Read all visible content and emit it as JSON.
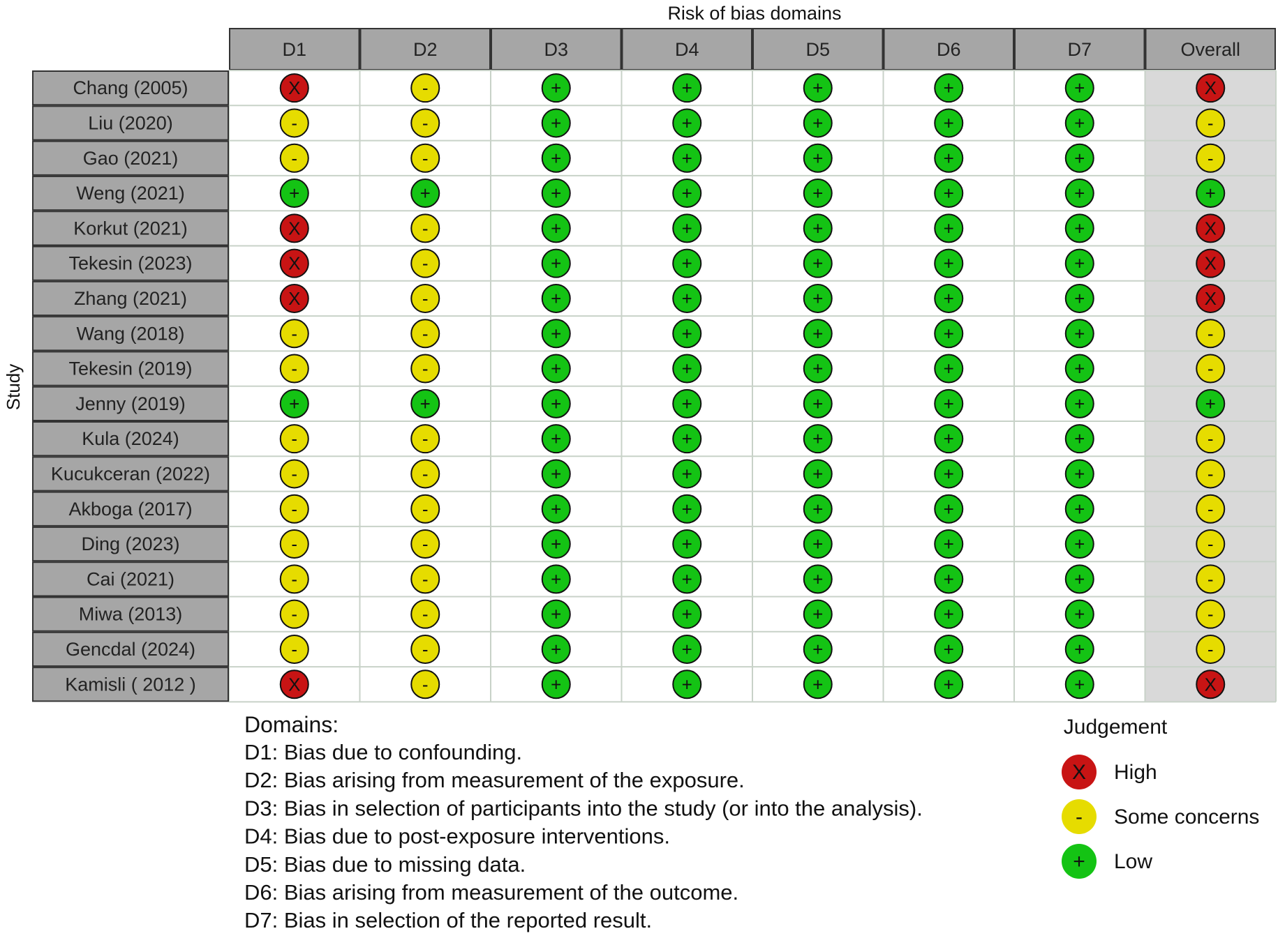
{
  "chart_data": {
    "type": "table",
    "title": "Risk of bias domains",
    "ylabel": "Study",
    "columns": [
      "D1",
      "D2",
      "D3",
      "D4",
      "D5",
      "D6",
      "D7",
      "Overall"
    ],
    "studies": [
      {
        "name": "Chang (2005)",
        "judgements": [
          "High",
          "Some concerns",
          "Low",
          "Low",
          "Low",
          "Low",
          "Low",
          "High"
        ]
      },
      {
        "name": "Liu (2020)",
        "judgements": [
          "Some concerns",
          "Some concerns",
          "Low",
          "Low",
          "Low",
          "Low",
          "Low",
          "Some concerns"
        ]
      },
      {
        "name": "Gao (2021)",
        "judgements": [
          "Some concerns",
          "Some concerns",
          "Low",
          "Low",
          "Low",
          "Low",
          "Low",
          "Some concerns"
        ]
      },
      {
        "name": "Weng (2021)",
        "judgements": [
          "Low",
          "Low",
          "Low",
          "Low",
          "Low",
          "Low",
          "Low",
          "Low"
        ]
      },
      {
        "name": "Korkut (2021)",
        "judgements": [
          "High",
          "Some concerns",
          "Low",
          "Low",
          "Low",
          "Low",
          "Low",
          "High"
        ]
      },
      {
        "name": "Tekesin (2023)",
        "judgements": [
          "High",
          "Some concerns",
          "Low",
          "Low",
          "Low",
          "Low",
          "Low",
          "High"
        ]
      },
      {
        "name": "Zhang (2021)",
        "judgements": [
          "High",
          "Some concerns",
          "Low",
          "Low",
          "Low",
          "Low",
          "Low",
          "High"
        ]
      },
      {
        "name": "Wang (2018)",
        "judgements": [
          "Some concerns",
          "Some concerns",
          "Low",
          "Low",
          "Low",
          "Low",
          "Low",
          "Some concerns"
        ]
      },
      {
        "name": "Tekesin (2019)",
        "judgements": [
          "Some concerns",
          "Some concerns",
          "Low",
          "Low",
          "Low",
          "Low",
          "Low",
          "Some concerns"
        ]
      },
      {
        "name": "Jenny (2019)",
        "judgements": [
          "Low",
          "Low",
          "Low",
          "Low",
          "Low",
          "Low",
          "Low",
          "Low"
        ]
      },
      {
        "name": "Kula (2024)",
        "judgements": [
          "Some concerns",
          "Some concerns",
          "Low",
          "Low",
          "Low",
          "Low",
          "Low",
          "Some concerns"
        ]
      },
      {
        "name": "Kucukceran (2022)",
        "judgements": [
          "Some concerns",
          "Some concerns",
          "Low",
          "Low",
          "Low",
          "Low",
          "Low",
          "Some concerns"
        ]
      },
      {
        "name": "Akboga (2017)",
        "judgements": [
          "Some concerns",
          "Some concerns",
          "Low",
          "Low",
          "Low",
          "Low",
          "Low",
          "Some concerns"
        ]
      },
      {
        "name": "Ding (2023)",
        "judgements": [
          "Some concerns",
          "Some concerns",
          "Low",
          "Low",
          "Low",
          "Low",
          "Low",
          "Some concerns"
        ]
      },
      {
        "name": "Cai (2021)",
        "judgements": [
          "Some concerns",
          "Some concerns",
          "Low",
          "Low",
          "Low",
          "Low",
          "Low",
          "Some concerns"
        ]
      },
      {
        "name": "Miwa (2013)",
        "judgements": [
          "Some concerns",
          "Some concerns",
          "Low",
          "Low",
          "Low",
          "Low",
          "Low",
          "Some concerns"
        ]
      },
      {
        "name": "Gencdal (2024)",
        "judgements": [
          "Some concerns",
          "Some concerns",
          "Low",
          "Low",
          "Low",
          "Low",
          "Low",
          "Some concerns"
        ]
      },
      {
        "name": "Kamisli  ( 2012 )",
        "judgements": [
          "High",
          "Some concerns",
          "Low",
          "Low",
          "Low",
          "Low",
          "Low",
          "High"
        ]
      }
    ],
    "judgement_styles": {
      "High": {
        "symbol": "X",
        "color": "#c81414"
      },
      "Some concerns": {
        "symbol": "-",
        "color": "#e6dc00"
      },
      "Low": {
        "symbol": "+",
        "color": "#14c314"
      }
    },
    "domains_title": "Domains:",
    "domains": [
      "D1: Bias due to confounding.",
      "D2: Bias arising from measurement of the exposure.",
      "D3: Bias in selection of participants into the study (or into the analysis).",
      "D4: Bias due to post-exposure interventions.",
      "D5: Bias due to missing data.",
      "D6: Bias arising from measurement of the outcome.",
      "D7: Bias in selection of the reported result."
    ],
    "legend_title": "Judgement",
    "legend": [
      "High",
      "Some concerns",
      "Low"
    ],
    "colors": {
      "header_fill": "#a6a6a6",
      "overall_fill": "#d9d9d9",
      "grid_line": "#c8d2c8",
      "border": "#333333"
    }
  }
}
